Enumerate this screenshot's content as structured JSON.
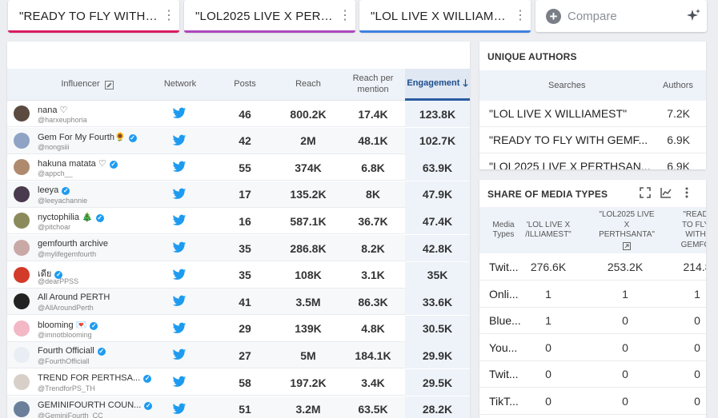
{
  "tabs": [
    {
      "label": "\"READY TO FLY WITH GE...",
      "color": "#d81b60"
    },
    {
      "label": "\"LOL2025 LIVE X PERTH...",
      "color": "#ab47bc"
    },
    {
      "label": "\"LOL LIVE X WILLIAMEST\"",
      "color": "#3f7fe0"
    }
  ],
  "compare": {
    "label": "Compare"
  },
  "influencers": {
    "headers": {
      "influencer": "Influencer",
      "network": "Network",
      "posts": "Posts",
      "reach": "Reach",
      "reach_per_mention": "Reach per mention",
      "engagement": "Engagement"
    },
    "rows": [
      {
        "name": "nana ♡",
        "handle": "@harxeuphoria",
        "verified": false,
        "posts": "46",
        "reach": "800.2K",
        "rpm": "17.4K",
        "engagement": "123.8K",
        "avatar_color": "#5b4a3f"
      },
      {
        "name": "Gem For My Fourth🌻",
        "handle": "@nongsiii",
        "verified": true,
        "posts": "42",
        "reach": "2M",
        "rpm": "48.1K",
        "engagement": "102.7K",
        "avatar_color": "#8fa3c4"
      },
      {
        "name": "hakuna matata ♡",
        "handle": "@appch__",
        "verified": true,
        "posts": "55",
        "reach": "374K",
        "rpm": "6.8K",
        "engagement": "63.9K",
        "avatar_color": "#b08a6e"
      },
      {
        "name": "leeya",
        "handle": "@leeyachannie",
        "verified": true,
        "posts": "17",
        "reach": "135.2K",
        "rpm": "8K",
        "engagement": "47.9K",
        "avatar_color": "#4a3a4e"
      },
      {
        "name": "nyctophilia 🎄",
        "handle": "@pitchoar",
        "verified": true,
        "posts": "16",
        "reach": "587.1K",
        "rpm": "36.7K",
        "engagement": "47.4K",
        "avatar_color": "#8b8a5a"
      },
      {
        "name": "gemfourth archive",
        "handle": "@mylifegemfourth",
        "verified": false,
        "posts": "35",
        "reach": "286.8K",
        "rpm": "8.2K",
        "engagement": "42.8K",
        "avatar_color": "#c9a9a6"
      },
      {
        "name": "เดีย",
        "handle": "@dearPPSS",
        "verified": true,
        "posts": "35",
        "reach": "108K",
        "rpm": "3.1K",
        "engagement": "35K",
        "avatar_color": "#d23a2a"
      },
      {
        "name": "All Around PERTH",
        "handle": "@AllAroundPerth",
        "verified": false,
        "posts": "41",
        "reach": "3.5M",
        "rpm": "86.3K",
        "engagement": "33.6K",
        "avatar_color": "#222222"
      },
      {
        "name": "blooming 💌",
        "handle": "@imnotblooming",
        "verified": true,
        "posts": "29",
        "reach": "139K",
        "rpm": "4.8K",
        "engagement": "30.5K",
        "avatar_color": "#f2b8c6"
      },
      {
        "name": "Fourth Officiall",
        "handle": "@FourthOfficiall",
        "verified": true,
        "posts": "27",
        "reach": "5M",
        "rpm": "184.1K",
        "engagement": "29.9K",
        "avatar_color": "#e9eef5"
      },
      {
        "name": "TREND FOR PERTHSA...",
        "handle": "@TrendforPS_TH",
        "verified": true,
        "posts": "58",
        "reach": "197.2K",
        "rpm": "3.4K",
        "engagement": "29.5K",
        "avatar_color": "#d8d0c8"
      },
      {
        "name": "GEMINIFOURTH COUN...",
        "handle": "@GeminiFourth_CC",
        "verified": true,
        "posts": "51",
        "reach": "3.2M",
        "rpm": "63.5K",
        "engagement": "28.2K",
        "avatar_color": "#6a7f9a"
      }
    ]
  },
  "unique_authors": {
    "title": "UNIQUE AUTHORS",
    "col_searches": "Searches",
    "col_authors": "Authors",
    "rows": [
      {
        "search": "\"LOL LIVE X WILLIAMEST\"",
        "authors": "7.2K"
      },
      {
        "search": "\"READY TO FLY WITH GEMF...",
        "authors": "6.9K"
      },
      {
        "search": "\"LOL2025 LIVE X PERTHSAN...",
        "authors": "6.9K"
      }
    ]
  },
  "share_media": {
    "title": "SHARE OF MEDIA TYPES",
    "col_media": "Media Types",
    "cols": [
      "'LOL LIVE X /ILLIAMEST\"",
      "\"LOL2025 LIVE X PERTHSANTA\"",
      "\"READ TO FLY WITH GEMFO"
    ],
    "rows": [
      {
        "type": "Twit...",
        "values": [
          "276.6K",
          "253.2K",
          "214.8"
        ]
      },
      {
        "type": "Onli...",
        "values": [
          "1",
          "1",
          "1"
        ]
      },
      {
        "type": "Blue...",
        "values": [
          "1",
          "0",
          "0"
        ]
      },
      {
        "type": "You...",
        "values": [
          "0",
          "0",
          "0"
        ]
      },
      {
        "type": "Twit...",
        "values": [
          "0",
          "0",
          "0"
        ]
      },
      {
        "type": "TikT...",
        "values": [
          "0",
          "0",
          "0"
        ]
      }
    ]
  },
  "colors": {
    "twitter": "#1d9bf0",
    "accent": "#2b5aa0"
  },
  "icons": [
    "kebab-icon",
    "plus-icon",
    "sparkle-icon",
    "edit-icon",
    "sort-down-icon",
    "twitter-icon",
    "verified-icon",
    "expand-icon",
    "chart-icon"
  ]
}
